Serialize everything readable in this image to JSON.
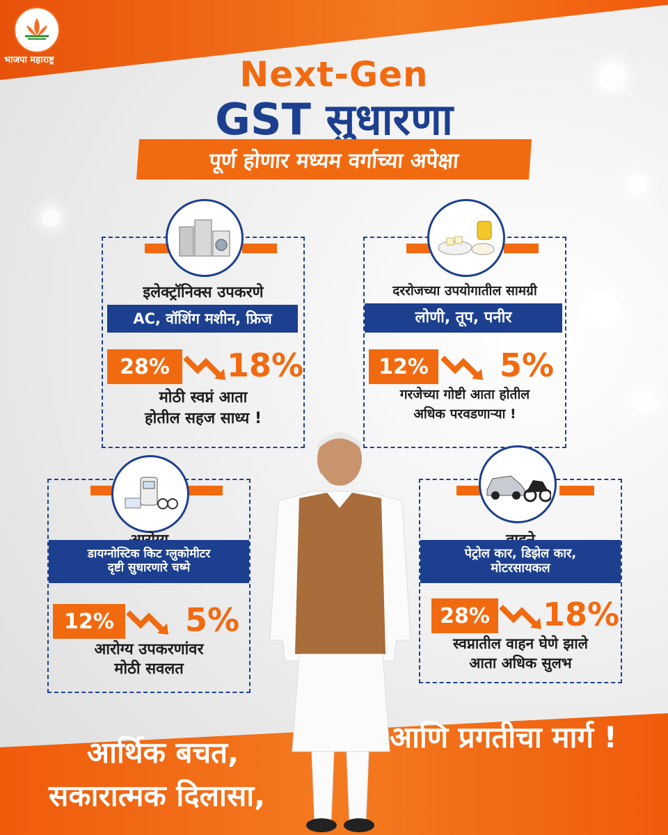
{
  "brand": {
    "name": "भाजपा महाराष्ट्र"
  },
  "title": {
    "line1": "Next-Gen",
    "line2": "GST सुधारणा",
    "subtitle": "पूर्ण होणार मध्यम वर्गाच्या अपेक्षा"
  },
  "cards": [
    {
      "category": "इलेक्ट्रॉनिक्स उपकरणे",
      "items": "AC, वॉशिंग मशीन, फ्रिज",
      "from": "28%",
      "to": "18%",
      "desc1": "मोठी स्वप्नं आता",
      "desc2": "होतील सहज साध्य !",
      "icon": "appliances-icon"
    },
    {
      "category": "दररोजच्या उपयोगातील सामग्री",
      "items": "लोणी, तूप, पनीर",
      "from": "12%",
      "to": "5%",
      "desc1": "गरजेच्या गोष्टी आता होतील",
      "desc2": "अधिक परवडणाऱ्या !",
      "icon": "dairy-icon"
    },
    {
      "category": "आरोग्य",
      "items1": "डायग्नोस्टिक किट ग्लुकोमीटर",
      "items2": "दृष्टी सुधारणारे चष्मे",
      "from": "12%",
      "to": "5%",
      "desc1": "आरोग्य उपकरणांवर",
      "desc2": "मोठी सवलत",
      "icon": "medical-icon"
    },
    {
      "category": "वाहने",
      "items1": "पेट्रोल कार, डिझेल कार,",
      "items2": "मोटरसायकल",
      "from": "28%",
      "to": "18%",
      "desc1": "स्वप्नातील वाहन घेणे झाले",
      "desc2": "आता अधिक सुलभ",
      "icon": "vehicle-icon"
    }
  ],
  "bottom": {
    "line1": "आर्थिक बचत,",
    "line2": "सकारात्मक दिलासा,",
    "line3": "आणि प्रगतीचा मार्ग !"
  },
  "colors": {
    "orange": "#f26a10",
    "blue": "#1c3f8f",
    "white": "#ffffff"
  }
}
